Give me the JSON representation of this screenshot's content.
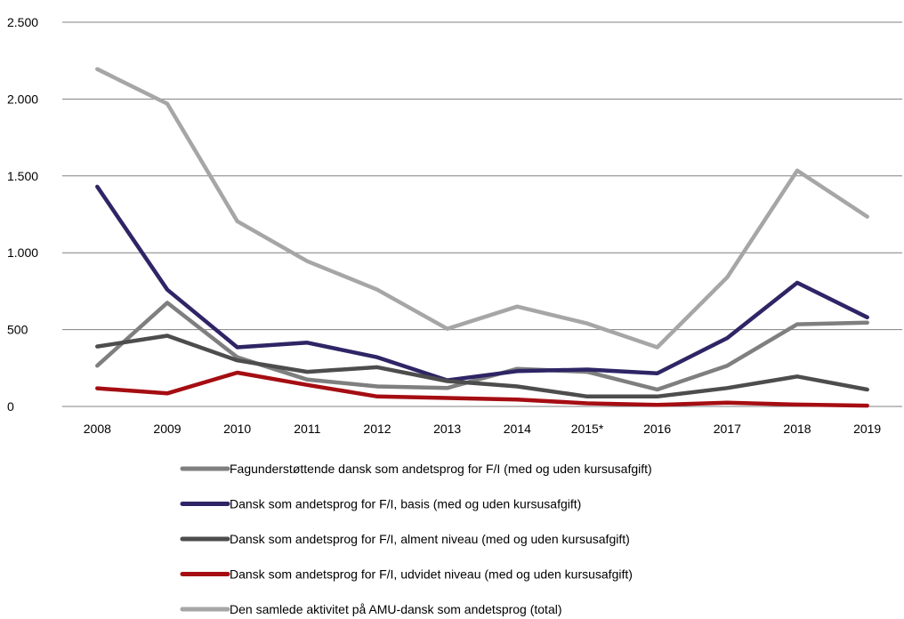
{
  "chart_data": {
    "type": "line",
    "categories": [
      "2008",
      "2009",
      "2010",
      "2011",
      "2012",
      "2013",
      "2014",
      "2015*",
      "2016",
      "2017",
      "2018",
      "2019"
    ],
    "ylim": [
      0,
      2500
    ],
    "yticks": [
      0,
      500,
      1000,
      1500,
      2000,
      2500
    ],
    "ytick_labels": [
      "0",
      "500",
      "1.000",
      "1.500",
      "2.000",
      "2.500"
    ],
    "grid": "horizontal",
    "legend_position": "bottom",
    "series": [
      {
        "name": "Fagunderstøttende dansk som andetsprog for F/I (med og uden kursusafgift)",
        "color": "#7f7f7f",
        "values": [
          265,
          675,
          320,
          175,
          130,
          120,
          245,
          225,
          110,
          265,
          535,
          545
        ]
      },
      {
        "name": "Dansk som andetsprog for F/I, basis (med og uden kursusafgift)",
        "color": "#2e2566",
        "values": [
          1430,
          760,
          385,
          415,
          320,
          170,
          230,
          240,
          215,
          445,
          805,
          580
        ]
      },
      {
        "name": "Dansk som andetsprog for F/I, alment niveau (med og uden kursusafgift)",
        "color": "#4d4d4d",
        "values": [
          390,
          460,
          300,
          225,
          255,
          165,
          130,
          65,
          65,
          120,
          195,
          110
        ]
      },
      {
        "name": "Dansk som andetsprog for F/I, udvidet niveau (med og uden kursusafgift)",
        "color": "#a50d12",
        "values": [
          118,
          85,
          220,
          140,
          65,
          55,
          45,
          20,
          10,
          25,
          12,
          5
        ]
      },
      {
        "name": "Den samlede aktivitet på AMU-dansk som andetsprog (total)",
        "color": "#a6a6a6",
        "values": [
          2195,
          1970,
          1205,
          945,
          760,
          505,
          650,
          540,
          385,
          840,
          1535,
          1235
        ]
      }
    ]
  }
}
